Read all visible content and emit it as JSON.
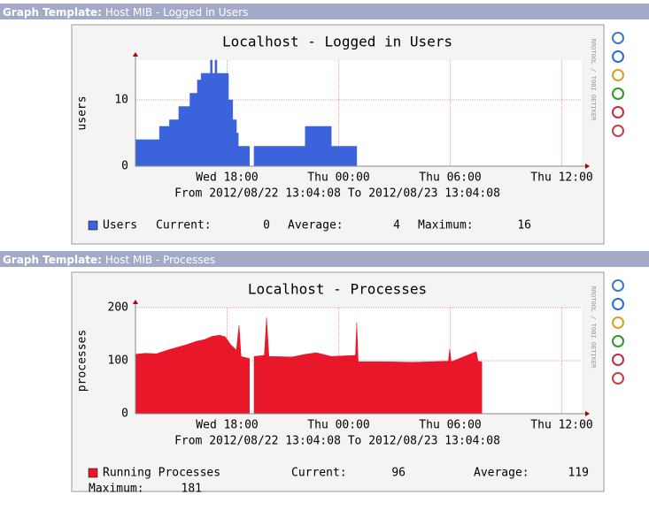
{
  "panels": [
    {
      "header_label": "Graph Template:",
      "header_title": "Host MIB - Logged in Users"
    },
    {
      "header_label": "Graph Template:",
      "header_title": "Host MIB - Processes"
    }
  ],
  "side_text": "RRDTOOL / TOBI OETIKER",
  "chart_data": [
    {
      "type": "area",
      "step": true,
      "title": "Localhost - Logged in Users",
      "y_label": "users",
      "x_label": "From 2012/08/22 13:04:08 To 2012/08/23 13:04:08",
      "x": [
        13.07,
        14.36,
        14.9,
        15.4,
        16.0,
        16.4,
        16.6,
        17.1,
        17.2,
        17.35,
        17.45,
        18.07,
        18.3,
        18.5,
        18.6,
        19.2,
        19.26,
        19.45,
        22.2,
        23.6,
        24.97
      ],
      "series": [
        {
          "name": "Users",
          "color": "#3b63dc",
          "values": [
            4,
            6,
            7,
            9,
            11,
            13,
            14,
            16,
            14,
            16,
            14,
            10,
            7,
            5,
            3,
            3,
            null,
            3,
            6,
            3,
            3
          ]
        }
      ],
      "xlim": [
        13.07,
        37.07
      ],
      "xticks": [
        {
          "value": 18,
          "label": "Wed 18:00"
        },
        {
          "value": 24,
          "label": "Thu 00:00"
        },
        {
          "value": 30,
          "label": "Thu 06:00"
        },
        {
          "value": 36,
          "label": "Thu 12:00"
        }
      ],
      "ylim": [
        0,
        16
      ],
      "yticks": [
        0,
        10
      ],
      "grid": true,
      "legend_stats": [
        {
          "label": "Current:",
          "value": 0
        },
        {
          "label": "Average:",
          "value": 4
        },
        {
          "label": "Maximum:",
          "value": 16
        }
      ]
    },
    {
      "type": "area",
      "step": false,
      "title": "Localhost - Processes",
      "y_label": "processes",
      "x_label": "From 2012/08/22 13:04:08 To 2012/08/23 13:04:08",
      "x": [
        13.07,
        13.6,
        14.2,
        14.8,
        15.3,
        15.8,
        16.3,
        16.8,
        17.2,
        17.6,
        17.9,
        18.2,
        18.5,
        18.64,
        18.75,
        19.2,
        19.3,
        19.45,
        20.0,
        20.12,
        20.25,
        21.5,
        22.2,
        22.8,
        23.6,
        24.9,
        24.97,
        25.05,
        26.5,
        28,
        29.9,
        29.97,
        30.05,
        31.4,
        31.5,
        31.7
      ],
      "series": [
        {
          "name": "Running Processes",
          "color": "#e8172a",
          "values": [
            112,
            114,
            113,
            120,
            125,
            130,
            136,
            140,
            146,
            148,
            145,
            130,
            120,
            167,
            108,
            104,
            null,
            108,
            110,
            181,
            108,
            107,
            112,
            115,
            108,
            110,
            172,
            98,
            98,
            97,
            99,
            122,
            98,
            117,
            99,
            98
          ]
        }
      ],
      "xlim": [
        13.07,
        37.07
      ],
      "xticks": [
        {
          "value": 18,
          "label": "Wed 18:00"
        },
        {
          "value": 24,
          "label": "Thu 00:00"
        },
        {
          "value": 30,
          "label": "Thu 06:00"
        },
        {
          "value": 36,
          "label": "Thu 12:00"
        }
      ],
      "ylim": [
        0,
        200
      ],
      "yticks": [
        0,
        100,
        200
      ],
      "grid": true,
      "legend_stats": [
        {
          "label": "Current:",
          "value": 96
        },
        {
          "label": "Average:",
          "value": 119
        },
        {
          "label": "Maximum:",
          "value": 181
        }
      ]
    }
  ]
}
